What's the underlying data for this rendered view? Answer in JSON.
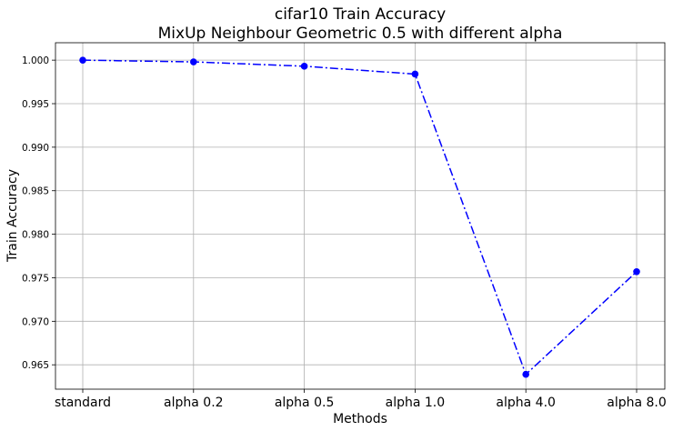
{
  "chart_data": {
    "type": "line",
    "title": "cifar10 Train Accuracy",
    "subtitle": "MixUp Neighbour Geometric 0.5 with different alpha",
    "xlabel": "Methods",
    "ylabel": "Train Accuracy",
    "categories": [
      "standard",
      "alpha 0.2",
      "alpha 0.5",
      "alpha 1.0",
      "alpha 4.0",
      "alpha 8.0"
    ],
    "series": [
      {
        "values": [
          1.0,
          0.9998,
          0.9993,
          0.9984,
          0.9639,
          0.9757
        ],
        "color": "#0000ff",
        "line_style": "dash-dot",
        "marker": "circle"
      }
    ],
    "ylim": [
      0.9622,
      1.002
    ],
    "yticks": [
      "0.965",
      "0.970",
      "0.975",
      "0.980",
      "0.985",
      "0.990",
      "0.995",
      "1.000"
    ],
    "grid": true
  }
}
